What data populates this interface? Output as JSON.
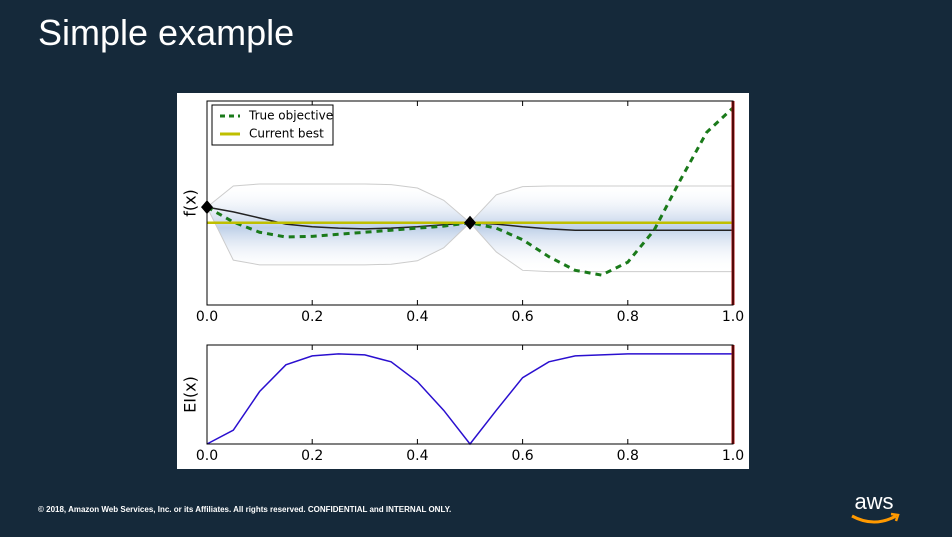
{
  "slide": {
    "title": "Simple example",
    "footer": "© 2018, Amazon Web Services, Inc. or its Affiliates. All rights reserved. CONFIDENTIAL and INTERNAL ONLY.",
    "logo": "aws"
  },
  "chart_data": [
    {
      "type": "line",
      "ylabel": "f(x)",
      "xlim": [
        0,
        1
      ],
      "xticks": [
        {
          "value": 0,
          "label": "0.0"
        },
        0.2,
        0.4,
        0.6,
        0.8,
        {
          "value": 1,
          "label": "1.0"
        }
      ],
      "ylim": [
        -1.5,
        1.5
      ],
      "x": [
        0,
        0.05,
        0.1,
        0.15,
        0.2,
        0.25,
        0.3,
        0.35,
        0.4,
        0.45,
        0.5,
        0.55,
        0.6,
        0.65,
        0.7,
        0.75,
        0.8,
        0.85,
        0.9,
        0.95,
        1
      ],
      "series": [
        {
          "name": "True objective",
          "color": "#1a7a1a",
          "dashed": true,
          "values": [
            -0.06,
            -0.28,
            -0.43,
            -0.5,
            -0.49,
            -0.46,
            -0.43,
            -0.4,
            -0.37,
            -0.34,
            -0.29,
            -0.37,
            -0.54,
            -0.79,
            -0.99,
            -1.06,
            -0.87,
            -0.4,
            0.34,
            1.04,
            1.4
          ]
        },
        {
          "name": "Current best",
          "color": "#bfbf00",
          "values": [
            -0.29,
            -0.29,
            -0.29,
            -0.29,
            -0.29,
            -0.29,
            -0.29,
            -0.29,
            -0.29,
            -0.29,
            -0.29,
            -0.29,
            -0.29,
            -0.29,
            -0.29,
            -0.29,
            -0.29,
            -0.29,
            -0.29,
            -0.29,
            -0.29
          ]
        },
        {
          "color": "#222222",
          "values": [
            -0.06,
            -0.13,
            -0.22,
            -0.31,
            -0.35,
            -0.37,
            -0.38,
            -0.37,
            -0.35,
            -0.32,
            -0.29,
            -0.31,
            -0.35,
            -0.38,
            -0.4,
            -0.4,
            -0.4,
            -0.4,
            -0.4,
            -0.4,
            -0.4
          ]
        }
      ],
      "band": {
        "upper": [
          -0.06,
          0.25,
          0.28,
          0.28,
          0.28,
          0.28,
          0.28,
          0.27,
          0.22,
          0.04,
          -0.29,
          0.12,
          0.24,
          0.25,
          0.25,
          0.25,
          0.25,
          0.25,
          0.25,
          0.25,
          0.25
        ],
        "lower": [
          -0.06,
          -0.84,
          -0.91,
          -0.91,
          -0.91,
          -0.91,
          -0.91,
          -0.9,
          -0.85,
          -0.66,
          -0.29,
          -0.72,
          -0.99,
          -1.01,
          -1.01,
          -1.01,
          -1.01,
          -1.01,
          -1.01,
          -1.01,
          -1.01
        ],
        "color": "#cccccc"
      },
      "points": {
        "x": [
          0,
          0.5
        ],
        "values": [
          -0.06,
          -0.29
        ],
        "color": "#000000"
      },
      "next_x": 1,
      "next_color": "#aa1111",
      "legend": "upper left"
    },
    {
      "type": "line",
      "ylabel": "EI(x)",
      "xlim": [
        0,
        1
      ],
      "xticks": [
        {
          "value": 0,
          "label": "0.0"
        },
        0.2,
        0.4,
        0.6,
        0.8,
        {
          "value": 1,
          "label": "1.0"
        }
      ],
      "ylim": [
        0,
        1
      ],
      "x": [
        0,
        0.05,
        0.1,
        0.15,
        0.2,
        0.25,
        0.3,
        0.35,
        0.4,
        0.45,
        0.5,
        0.55,
        0.6,
        0.65,
        0.7,
        0.75,
        0.8,
        0.85,
        0.9,
        0.95,
        1
      ],
      "series": [
        {
          "color": "#2a0fcf",
          "values": [
            0,
            0.14,
            0.53,
            0.8,
            0.89,
            0.91,
            0.9,
            0.83,
            0.63,
            0.34,
            0,
            0.34,
            0.67,
            0.83,
            0.89,
            0.9,
            0.91,
            0.91,
            0.91,
            0.91,
            0.91
          ]
        }
      ],
      "next_x": 1,
      "next_color": "#aa1111"
    }
  ]
}
